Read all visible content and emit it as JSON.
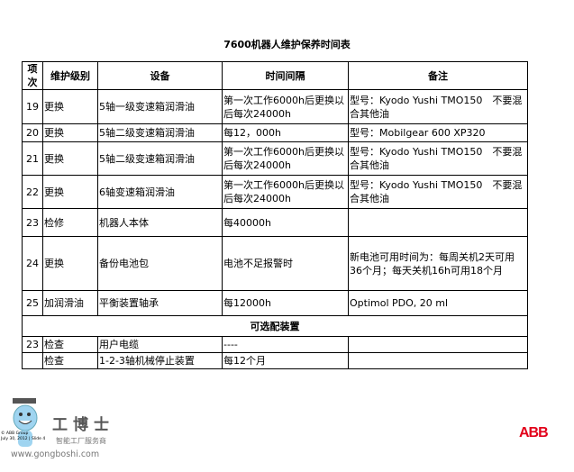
{
  "title": "7600机器人维护保养时间表",
  "headers": [
    "项次",
    "维护级别",
    "设备",
    "时间间隔",
    "备注"
  ],
  "rows": [
    [
      "19",
      "更换",
      "5轴一级变速箱润滑油",
      "第一次工作6000h后更换以后每次24000h",
      "型号：Kyodo Yushi TMO150　不要混合其他油"
    ],
    [
      "20",
      "更换",
      "5轴二级变速箱润滑油",
      "每12，000h",
      "型号：Mobilgear 600  XP320"
    ],
    [
      "21",
      "更换",
      "5轴二级变速箱润滑油",
      "第一次工作6000h后更换以后每次24000h",
      "型号：Kyodo Yushi TMO150　不要混合其他油"
    ],
    [
      "22",
      "更换",
      "6轴变速箱润滑油",
      "第一次工作6000h后更换以后每次24000h",
      "型号：Kyodo Yushi TMO150　不要混合其他油"
    ],
    [
      "23",
      "检修",
      "机器人本体",
      "每40000h",
      ""
    ],
    [
      "24",
      "更换",
      "备份电池包",
      "电池不足报警时",
      "新电池可用时间为：每周关机2天可用36个月；每天关机16h可用18个月"
    ],
    [
      "25",
      "加润滑油",
      "平衡装置轴承",
      "每12000h",
      "Optimol PDO, 20 ml"
    ]
  ],
  "optional_title": "可选配装置",
  "optional_rows": [
    [
      "23",
      "检查",
      "用户电缆",
      "----",
      ""
    ],
    [
      "",
      "检查",
      "1-2-3轴机械停止装置",
      "每12个月",
      ""
    ]
  ],
  "footer": {
    "brand": "工博士",
    "tagline": "智能工厂服务商",
    "url": "www.gongboshi.com",
    "copyright": "© ABB Group",
    "date": "July 30, 2012 | Slide 4",
    "abb_logo": "ABB",
    "abb_color": "#e2001a"
  }
}
